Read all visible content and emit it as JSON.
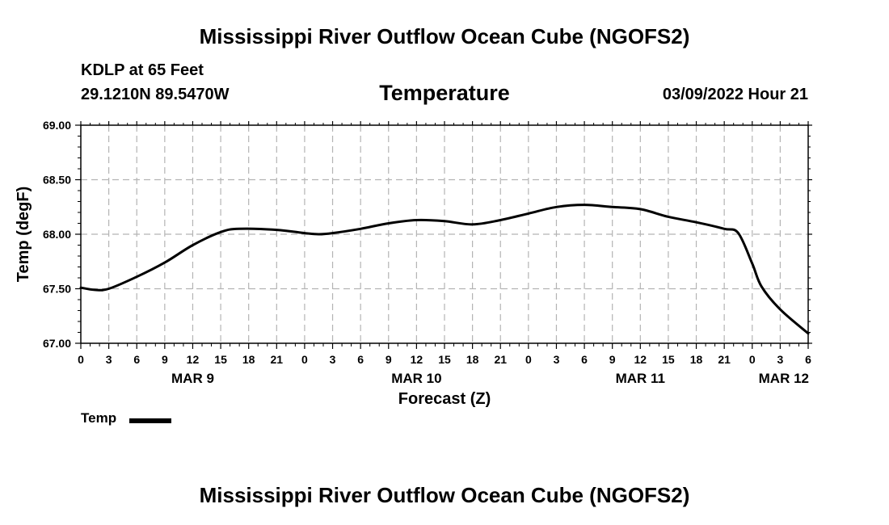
{
  "header": {
    "title": "Mississippi River Outflow Ocean Cube (NGOFS2)",
    "station": "KDLP at 65 Feet",
    "coords": "29.1210N  89.5470W",
    "variable": "Temperature",
    "datetime": "03/09/2022 Hour 21"
  },
  "footer": {
    "title": "Mississippi River Outflow Ocean Cube (NGOFS2)"
  },
  "legend": {
    "label": "Temp"
  },
  "colors": {
    "line": "#000000",
    "grid": "#b4b4b4",
    "background": "#ffffff"
  },
  "chart_data": {
    "type": "line",
    "title": "Temperature",
    "xlabel": "Forecast (Z)",
    "ylabel": "Temp (degF)",
    "ylim": [
      67.0,
      69.0
    ],
    "xlim": [
      0,
      78
    ],
    "x_unit": "hours since MAR 9 00Z",
    "yticks": [
      67.0,
      67.5,
      68.0,
      68.5,
      69.0
    ],
    "ytick_labels": [
      "67.00",
      "67.50",
      "68.00",
      "68.50",
      "69.00"
    ],
    "xticks": [
      0,
      3,
      6,
      9,
      12,
      15,
      18,
      21,
      24,
      27,
      30,
      33,
      36,
      39,
      42,
      45,
      48,
      51,
      54,
      57,
      60,
      63,
      66,
      69,
      72,
      75,
      78
    ],
    "xtick_labels": [
      "0",
      "3",
      "6",
      "9",
      "12",
      "15",
      "18",
      "21",
      "0",
      "3",
      "6",
      "9",
      "12",
      "15",
      "18",
      "21",
      "0",
      "3",
      "6",
      "9",
      "12",
      "15",
      "18",
      "21",
      "0",
      "3",
      "6"
    ],
    "day_labels": [
      {
        "x": 12,
        "label": "MAR 9"
      },
      {
        "x": 36,
        "label": "MAR 10"
      },
      {
        "x": 60,
        "label": "MAR 11"
      },
      {
        "x": 78,
        "label": "MAR 12"
      }
    ],
    "grid": true,
    "series": [
      {
        "name": "Temp",
        "x": [
          0,
          1.5,
          3,
          6,
          9,
          12,
          15,
          17,
          21,
          24,
          25.5,
          27,
          30,
          33,
          36,
          39,
          42,
          45,
          48,
          51,
          54,
          57,
          60,
          63,
          66,
          69,
          70.5,
          72,
          73,
          75,
          78
        ],
        "values": [
          67.51,
          67.49,
          67.5,
          67.61,
          67.74,
          67.9,
          68.02,
          68.05,
          68.04,
          68.01,
          68.0,
          68.01,
          68.05,
          68.1,
          68.13,
          68.12,
          68.09,
          68.13,
          68.19,
          68.25,
          68.27,
          68.25,
          68.23,
          68.16,
          68.11,
          68.05,
          68.01,
          67.73,
          67.52,
          67.31,
          67.09
        ]
      }
    ]
  }
}
